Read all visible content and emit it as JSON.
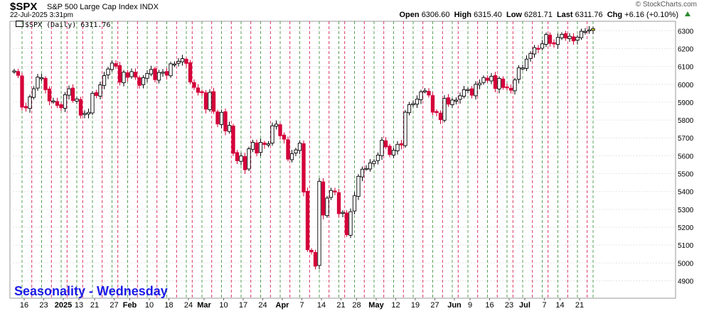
{
  "header": {
    "symbol": "$SPX",
    "description": "S&P 500 Large Cap Index INDX",
    "date": "22-Jul-2025 3:31pm",
    "credit": "© StockCharts.com",
    "open_label": "Open",
    "open": "6306.60",
    "high_label": "High",
    "high": "6315.40",
    "low_label": "Low",
    "low": "6281.71",
    "last_label": "Last",
    "last": "6311.76",
    "chg_label": "Chg",
    "chg": "+6.16 (+0.10%)",
    "legend": "$SPX (Daily) 6311.76",
    "annotation": "Seasonality - Wednesday"
  },
  "colors": {
    "up_candle": "#000000",
    "down_candle": "#d4003a",
    "wednesday_line": "#2e8b2e",
    "weekly_line": "#d4003a",
    "annotation": "#1a1ae6",
    "last_marker": "#ffff00",
    "up_arrow": "#2e8b2e"
  },
  "chart_data": {
    "type": "candlestick",
    "series": [
      {
        "name": "$SPX (Daily)",
        "weeks": [
          {
            "start": "Dec 16",
            "closes": [
              6075,
              6050,
              5872,
              5868,
              5930
            ]
          },
          {
            "start": "Dec 23",
            "closes": [
              5975,
              6040,
              6037,
              5970,
              5907
            ]
          },
          {
            "start": "Dec 30",
            "closes": [
              5907,
              5882,
              5869,
              5942
            ]
          },
          {
            "start": "Jan 6",
            "closes": [
              5975,
              5909,
              5918,
              5827
            ]
          },
          {
            "start": "Jan 13",
            "closes": [
              5837,
              5843,
              5950,
              5937,
              5997
            ]
          },
          {
            "start": "Jan 21",
            "closes": [
              6049,
              6086,
              6119,
              6101
            ]
          },
          {
            "start": "Jan 27",
            "closes": [
              6012,
              6068,
              6039,
              6071,
              6040
            ]
          },
          {
            "start": "Feb 3",
            "closes": [
              5994,
              6037,
              6061,
              6083,
              6026
            ]
          },
          {
            "start": "Feb 10",
            "closes": [
              6066,
              6068,
              6051,
              6115,
              6114
            ]
          },
          {
            "start": "Feb 18",
            "closes": [
              6129,
              6144,
              6117,
              6013
            ]
          },
          {
            "start": "Feb 24",
            "closes": [
              5983,
              5955,
              5956,
              5861,
              5955
            ]
          },
          {
            "start": "Mar 3",
            "closes": [
              5849,
              5778,
              5843,
              5739,
              5770
            ]
          },
          {
            "start": "Mar 10",
            "closes": [
              5614,
              5572,
              5599,
              5522,
              5639
            ]
          },
          {
            "start": "Mar 17",
            "closes": [
              5675,
              5615,
              5675,
              5663,
              5667
            ]
          },
          {
            "start": "Mar 24",
            "closes": [
              5768,
              5777,
              5712,
              5693,
              5581
            ]
          },
          {
            "start": "Mar 31",
            "closes": [
              5612,
              5633,
              5671,
              5397,
              5074
            ]
          },
          {
            "start": "Apr 7",
            "closes": [
              5062,
              4982,
              5457,
              5268,
              5363
            ]
          },
          {
            "start": "Apr 14",
            "closes": [
              5406,
              5397,
              5276,
              5283
            ]
          },
          {
            "start": "Apr 21",
            "closes": [
              5158,
              5287,
              5376,
              5485,
              5525
            ]
          },
          {
            "start": "Apr 28",
            "closes": [
              5529,
              5560,
              5569,
              5604,
              5687
            ]
          },
          {
            "start": "May 5",
            "closes": [
              5650,
              5607,
              5631,
              5664,
              5660
            ]
          },
          {
            "start": "May 12",
            "closes": [
              5844,
              5886,
              5892,
              5917,
              5958
            ]
          },
          {
            "start": "May 19",
            "closes": [
              5964,
              5940,
              5844,
              5842,
              5802
            ]
          },
          {
            "start": "May 27",
            "closes": [
              5921,
              5889,
              5912,
              5912
            ]
          },
          {
            "start": "Jun 2",
            "closes": [
              5936,
              5970,
              5971,
              5939,
              6000
            ]
          },
          {
            "start": "Jun 9",
            "closes": [
              6006,
              6038,
              6022,
              6045,
              5977
            ]
          },
          {
            "start": "Jun 16",
            "closes": [
              6033,
              5982,
              5981,
              5967
            ]
          },
          {
            "start": "Jun 23",
            "closes": [
              6025,
              6092,
              6092,
              6141,
              6173
            ]
          },
          {
            "start": "Jun 30",
            "closes": [
              6205,
              6198,
              6227,
              6279
            ]
          },
          {
            "start": "Jul 7",
            "closes": [
              6229,
              6226,
              6263,
              6280,
              6259
            ]
          },
          {
            "start": "Jul 14",
            "closes": [
              6269,
              6243,
              6264,
              6297,
              6297
            ]
          },
          {
            "start": "Jul 21",
            "closes": [
              6305,
              6311.76
            ]
          }
        ]
      }
    ],
    "ylim": [
      4800,
      6350
    ],
    "y_ticks": [
      "6300",
      "6200",
      "6100",
      "6000",
      "5900",
      "5800",
      "5700",
      "5600",
      "5500",
      "5400",
      "5300",
      "5200",
      "5100",
      "5000",
      "4900"
    ],
    "x_ticks": [
      "16",
      "23",
      "2025",
      "13",
      "21",
      "27",
      "Feb",
      "10",
      "18",
      "24",
      "Mar",
      "10",
      "17",
      "24",
      "Apr",
      "7",
      "14",
      "21",
      "28",
      "May",
      "12",
      "19",
      "27",
      "Jun",
      "9",
      "16",
      "23",
      "Jul",
      "7",
      "14",
      "21"
    ],
    "vertical_lines": {
      "wednesday": "green dashed",
      "weekly": "red dashed"
    },
    "grid": true,
    "legend_position": "top-left"
  }
}
